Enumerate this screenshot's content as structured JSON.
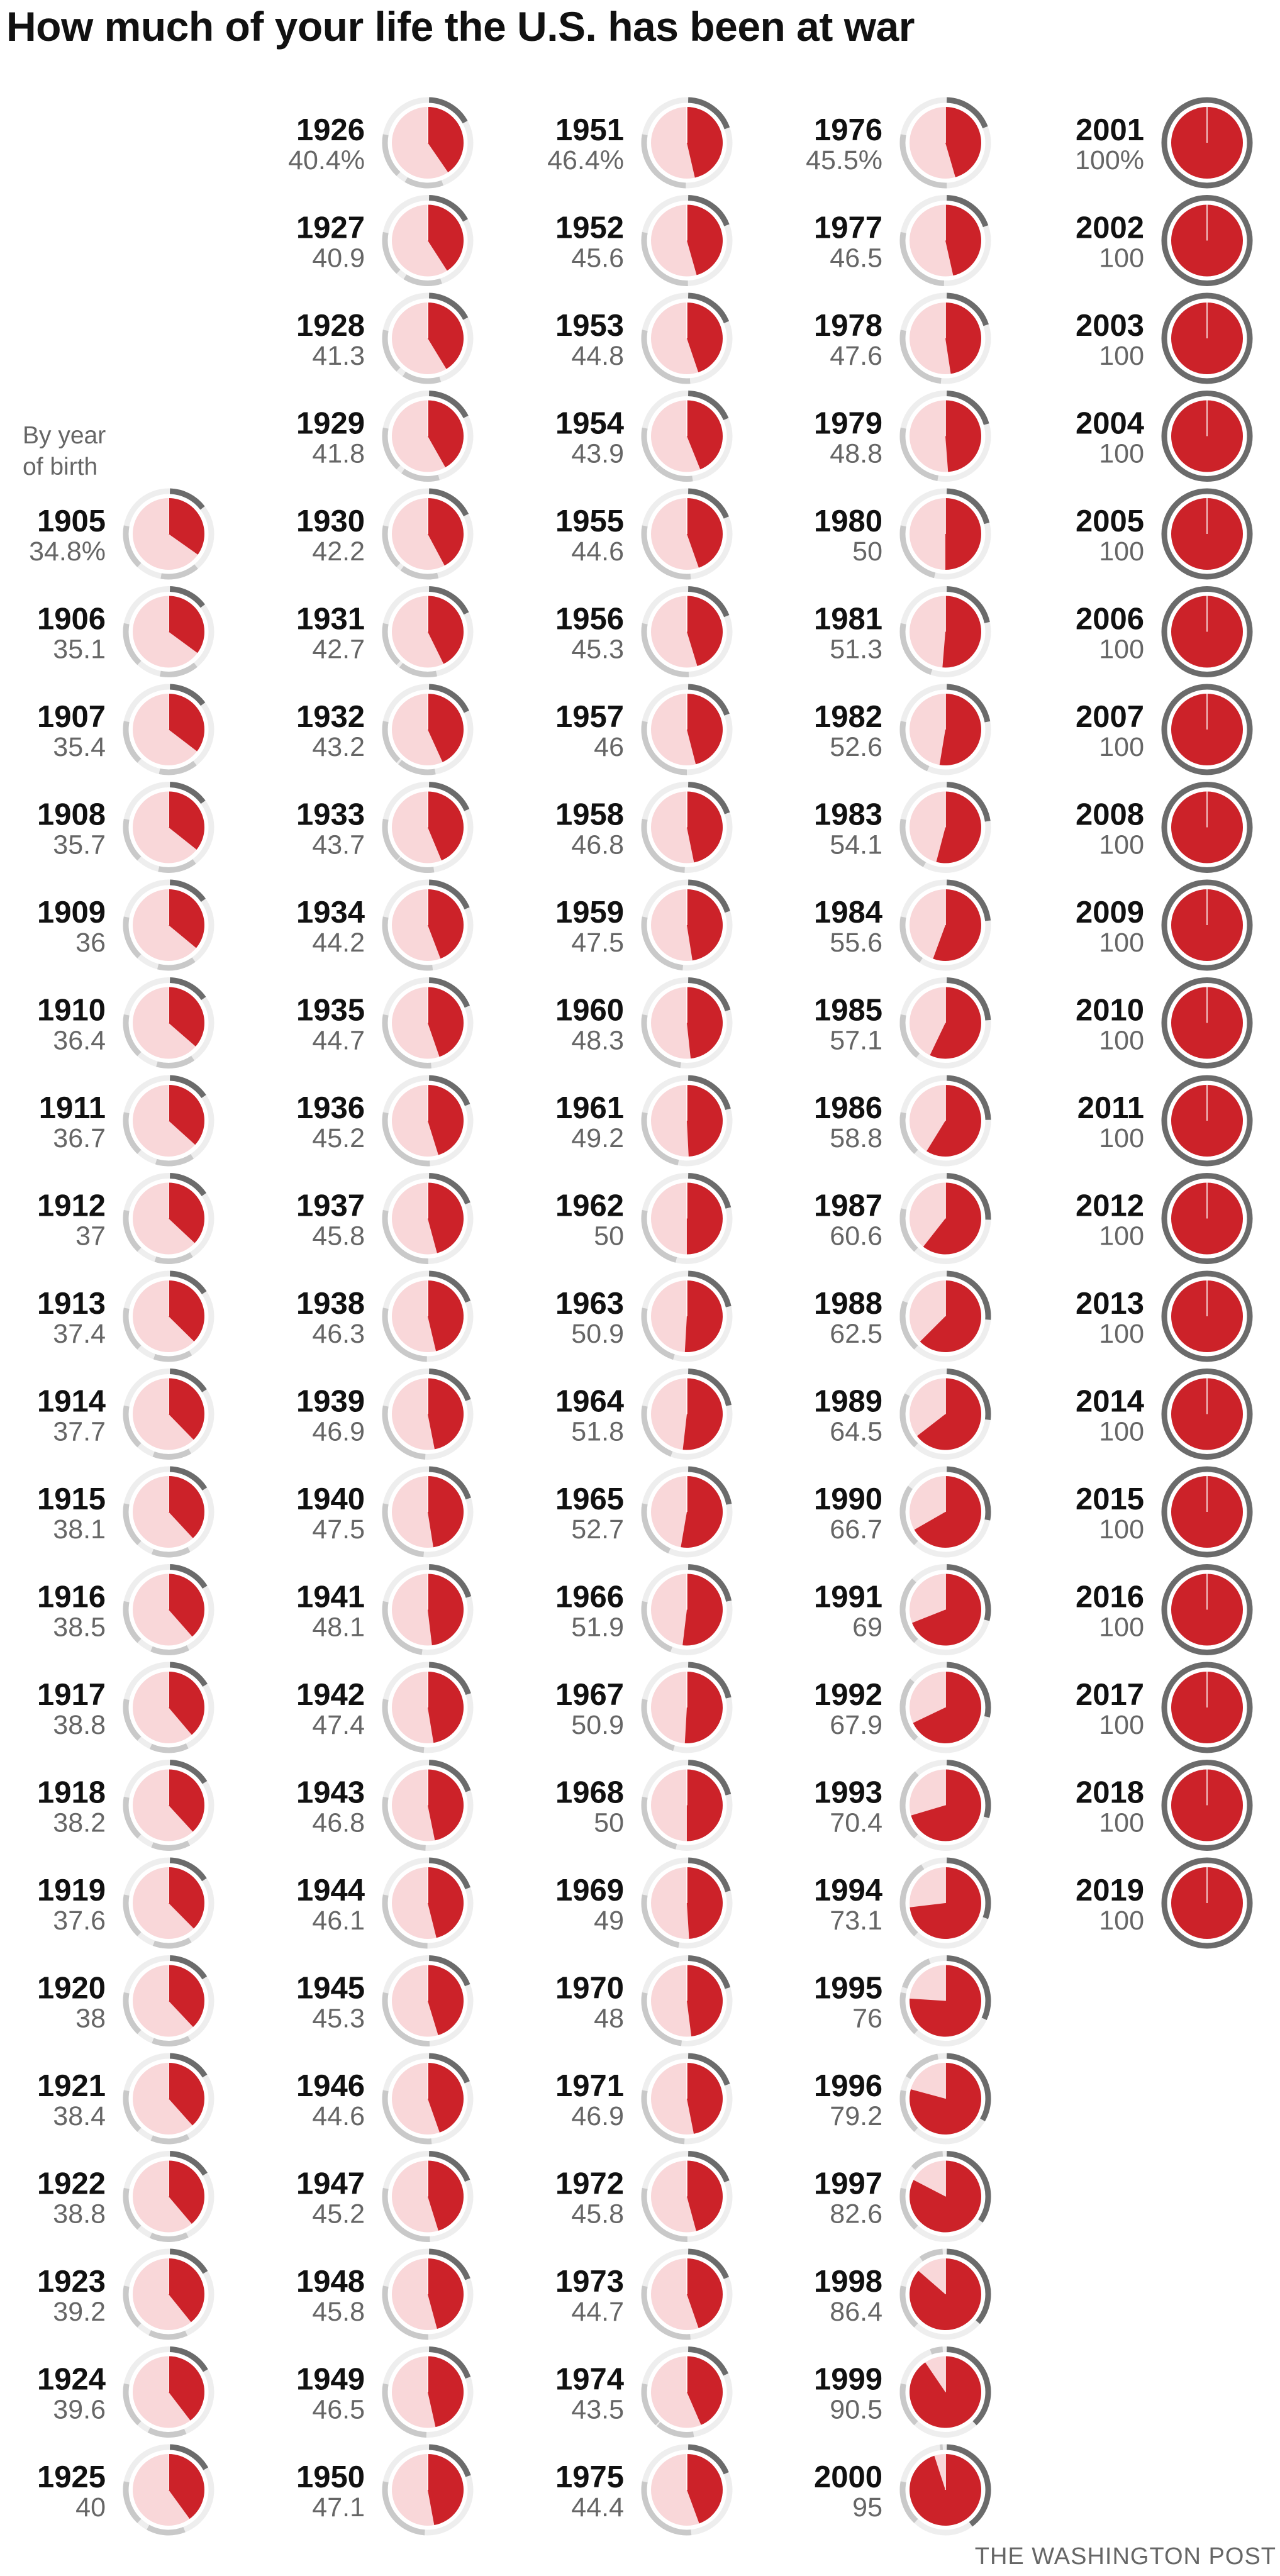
{
  "title": "How much of your life the U.S. has been at war",
  "legend_note": "By year of birth",
  "credit": "THE WASHINGTON POST",
  "colors": {
    "war_fill": "#cc2229",
    "pie_background": "#f9d7d9",
    "outer_ring_bg": "#eeeeee",
    "war_arc_dark": "#6b6b6b",
    "war_arc_light": "#c9c9c9",
    "label_gray": "#666666"
  },
  "chart_data": {
    "type": "pie",
    "units": "percent of life (by year of birth) the U.S. has been at war",
    "first_entry_percent_suffix": "%",
    "columns": [
      {
        "years": [
          1905,
          1906,
          1907,
          1908,
          1909,
          1910,
          1911,
          1912,
          1913,
          1914,
          1915,
          1916,
          1917,
          1918,
          1919,
          1920,
          1921,
          1922,
          1923,
          1924,
          1925
        ],
        "labels": [
          "34.8%",
          "35.1",
          "35.4",
          "35.7",
          "36",
          "36.4",
          "36.7",
          "37",
          "37.4",
          "37.7",
          "38.1",
          "38.5",
          "38.8",
          "38.2",
          "37.6",
          "38",
          "38.4",
          "38.8",
          "39.2",
          "39.6",
          "40"
        ],
        "values": [
          34.8,
          35.1,
          35.4,
          35.7,
          36,
          36.4,
          36.7,
          37,
          37.4,
          37.7,
          38.1,
          38.5,
          38.8,
          38.2,
          37.6,
          38,
          38.4,
          38.8,
          39.2,
          39.6,
          40
        ]
      },
      {
        "years": [
          1926,
          1927,
          1928,
          1929,
          1930,
          1931,
          1932,
          1933,
          1934,
          1935,
          1936,
          1937,
          1938,
          1939,
          1940,
          1941,
          1942,
          1943,
          1944,
          1945,
          1946,
          1947,
          1948,
          1949,
          1950
        ],
        "labels": [
          "40.4%",
          "40.9",
          "41.3",
          "41.8",
          "42.2",
          "42.7",
          "43.2",
          "43.7",
          "44.2",
          "44.7",
          "45.2",
          "45.8",
          "46.3",
          "46.9",
          "47.5",
          "48.1",
          "47.4",
          "46.8",
          "46.1",
          "45.3",
          "44.6",
          "45.2",
          "45.8",
          "46.5",
          "47.1"
        ],
        "values": [
          40.4,
          40.9,
          41.3,
          41.8,
          42.2,
          42.7,
          43.2,
          43.7,
          44.2,
          44.7,
          45.2,
          45.8,
          46.3,
          46.9,
          47.5,
          48.1,
          47.4,
          46.8,
          46.1,
          45.3,
          44.6,
          45.2,
          45.8,
          46.5,
          47.1
        ]
      },
      {
        "years": [
          1951,
          1952,
          1953,
          1954,
          1955,
          1956,
          1957,
          1958,
          1959,
          1960,
          1961,
          1962,
          1963,
          1964,
          1965,
          1966,
          1967,
          1968,
          1969,
          1970,
          1971,
          1972,
          1973,
          1974,
          1975
        ],
        "labels": [
          "46.4%",
          "45.6",
          "44.8",
          "43.9",
          "44.6",
          "45.3",
          "46",
          "46.8",
          "47.5",
          "48.3",
          "49.2",
          "50",
          "50.9",
          "51.8",
          "52.7",
          "51.9",
          "50.9",
          "50",
          "49",
          "48",
          "46.9",
          "45.8",
          "44.7",
          "43.5",
          "44.4"
        ],
        "values": [
          46.4,
          45.6,
          44.8,
          43.9,
          44.6,
          45.3,
          46,
          46.8,
          47.5,
          48.3,
          49.2,
          50,
          50.9,
          51.8,
          52.7,
          51.9,
          50.9,
          50,
          49,
          48,
          46.9,
          45.8,
          44.7,
          43.5,
          44.4
        ]
      },
      {
        "years": [
          1976,
          1977,
          1978,
          1979,
          1980,
          1981,
          1982,
          1983,
          1984,
          1985,
          1986,
          1987,
          1988,
          1989,
          1990,
          1991,
          1992,
          1993,
          1994,
          1995,
          1996,
          1997,
          1998,
          1999,
          2000
        ],
        "labels": [
          "45.5%",
          "46.5",
          "47.6",
          "48.8",
          "50",
          "51.3",
          "52.6",
          "54.1",
          "55.6",
          "57.1",
          "58.8",
          "60.6",
          "62.5",
          "64.5",
          "66.7",
          "69",
          "67.9",
          "70.4",
          "73.1",
          "76",
          "79.2",
          "82.6",
          "86.4",
          "90.5",
          "95"
        ],
        "values": [
          45.5,
          46.5,
          47.6,
          48.8,
          50,
          51.3,
          52.6,
          54.1,
          55.6,
          57.1,
          58.8,
          60.6,
          62.5,
          64.5,
          66.7,
          69,
          67.9,
          70.4,
          73.1,
          76,
          79.2,
          82.6,
          86.4,
          90.5,
          95
        ]
      },
      {
        "years": [
          2001,
          2002,
          2003,
          2004,
          2005,
          2006,
          2007,
          2008,
          2009,
          2010,
          2011,
          2012,
          2013,
          2014,
          2015,
          2016,
          2017,
          2018,
          2019
        ],
        "labels": [
          "100%",
          "100",
          "100",
          "100",
          "100",
          "100",
          "100",
          "100",
          "100",
          "100",
          "100",
          "100",
          "100",
          "100",
          "100",
          "100",
          "100",
          "100",
          "100"
        ],
        "values": [
          100,
          100,
          100,
          100,
          100,
          100,
          100,
          100,
          100,
          100,
          100,
          100,
          100,
          100,
          100,
          100,
          100,
          100,
          100
        ]
      }
    ]
  }
}
